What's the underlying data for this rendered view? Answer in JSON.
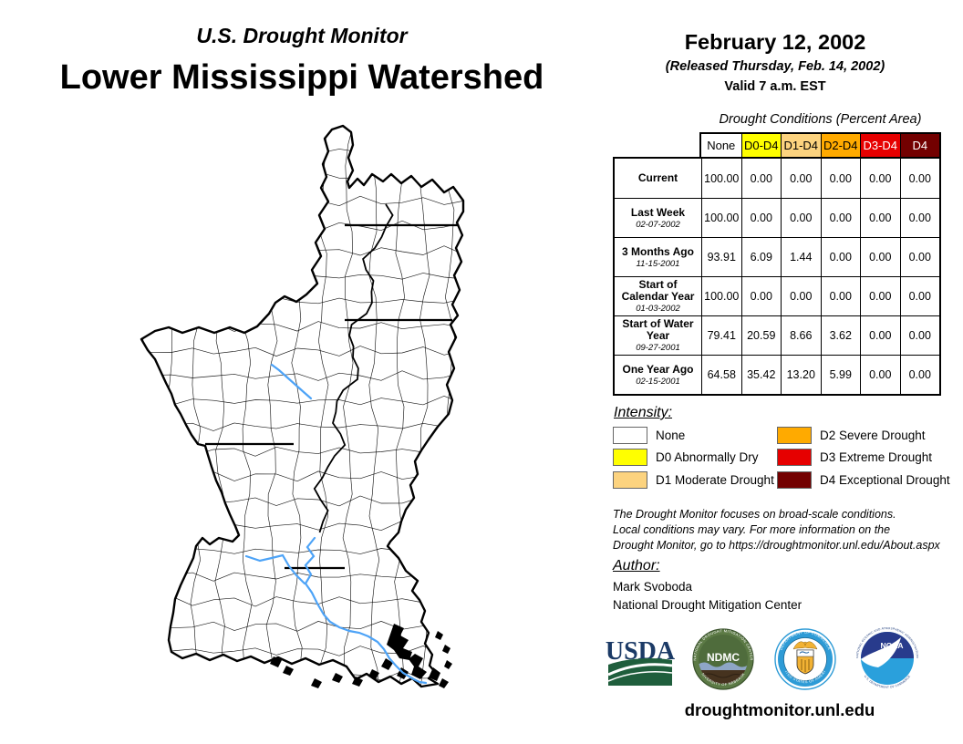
{
  "title": {
    "kicker": "U.S. Drought Monitor",
    "main": "Lower Mississippi Watershed"
  },
  "date_block": {
    "date": "February 12, 2002",
    "released": "(Released Thursday, Feb. 14, 2002)",
    "valid": "Valid 7 a.m. EST"
  },
  "table": {
    "title": "Drought Conditions (Percent Area)",
    "columns": [
      {
        "label": "None",
        "bg": "#FFFFFF",
        "fg": "#000000"
      },
      {
        "label": "D0-D4",
        "bg": "#FFFF00",
        "fg": "#000000"
      },
      {
        "label": "D1-D4",
        "bg": "#FCD37F",
        "fg": "#000000"
      },
      {
        "label": "D2-D4",
        "bg": "#FFAA00",
        "fg": "#000000"
      },
      {
        "label": "D3-D4",
        "bg": "#E60000",
        "fg": "#FFFFFF"
      },
      {
        "label": "D4",
        "bg": "#730000",
        "fg": "#FFFFFF"
      }
    ],
    "rows": [
      {
        "label": "Current",
        "date": "",
        "values": [
          "100.00",
          "0.00",
          "0.00",
          "0.00",
          "0.00",
          "0.00"
        ]
      },
      {
        "label": "Last Week",
        "date": "02-07-2002",
        "values": [
          "100.00",
          "0.00",
          "0.00",
          "0.00",
          "0.00",
          "0.00"
        ]
      },
      {
        "label": "3 Months Ago",
        "date": "11-15-2001",
        "values": [
          "93.91",
          "6.09",
          "1.44",
          "0.00",
          "0.00",
          "0.00"
        ]
      },
      {
        "label": "Start of Calendar Year",
        "date": "01-03-2002",
        "values": [
          "100.00",
          "0.00",
          "0.00",
          "0.00",
          "0.00",
          "0.00"
        ]
      },
      {
        "label": "Start of Water Year",
        "date": "09-27-2001",
        "values": [
          "79.41",
          "20.59",
          "8.66",
          "3.62",
          "0.00",
          "0.00"
        ]
      },
      {
        "label": "One Year Ago",
        "date": "02-15-2001",
        "values": [
          "64.58",
          "35.42",
          "13.20",
          "5.99",
          "0.00",
          "0.00"
        ]
      }
    ]
  },
  "legend": {
    "heading": "Intensity:",
    "items": [
      {
        "label": "None",
        "color": "#FFFFFF"
      },
      {
        "label": "D0 Abnormally Dry",
        "color": "#FFFF00"
      },
      {
        "label": "D1 Moderate Drought",
        "color": "#FCD37F"
      },
      {
        "label": "D2 Severe Drought",
        "color": "#FFAA00"
      },
      {
        "label": "D3 Extreme Drought",
        "color": "#E60000"
      },
      {
        "label": "D4 Exceptional Drought",
        "color": "#730000"
      }
    ]
  },
  "disclaimer": {
    "lines": [
      "The Drought Monitor focuses on broad-scale conditions.",
      "Local conditions may vary. For more information on the",
      "Drought Monitor, go to https://droughtmonitor.unl.edu/About.aspx"
    ]
  },
  "author": {
    "heading": "Author:",
    "name": "Mark Svoboda",
    "org": "National Drought Mitigation Center"
  },
  "logos": {
    "usda_label": "USDA",
    "ndmc_label": "NDMC",
    "ndmc_ring_top": "NATIONAL DROUGHT MITIGATION CENTER",
    "ndmc_ring_bottom": "UNIVERSITY OF NEBRASKA",
    "doc_ring_top": "DEPARTMENT OF COMMERCE",
    "doc_ring_bottom": "UNITED STATES OF AMERICA",
    "noaa_label": "NOAA",
    "noaa_ring_top": "NATIONAL OCEANIC AND ATMOSPHERIC ADMINISTRATION",
    "noaa_ring_bottom": "U.S. DEPARTMENT OF COMMERCE"
  },
  "footer": {
    "url": "droughtmonitor.unl.edu"
  },
  "map": {
    "name": "Lower Mississippi Watershed county map",
    "river_color": "#4DA3F7",
    "outline_color": "#000000"
  }
}
